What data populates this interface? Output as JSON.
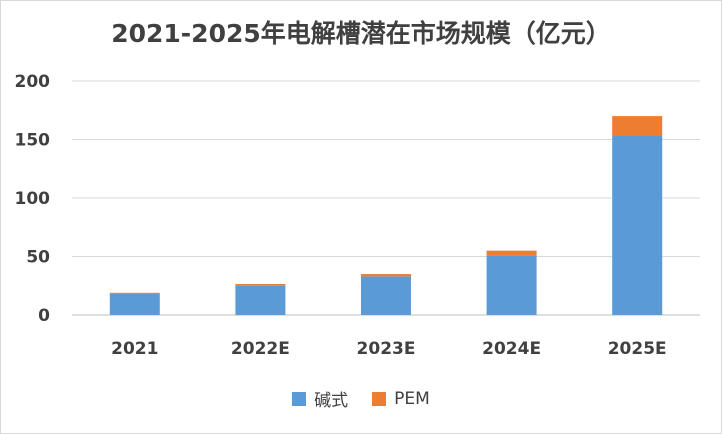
{
  "chart_data": {
    "type": "bar",
    "stacked": true,
    "title": "2021-2025年电解槽潜在市场规模（亿元）",
    "categories": [
      "2021",
      "2022E",
      "2023E",
      "2024E",
      "2025E"
    ],
    "series": [
      {
        "name": "碱式",
        "color": "#5b9bd5",
        "values": [
          18,
          25,
          33,
          51,
          153
        ]
      },
      {
        "name": "PEM",
        "color": "#ed7d31",
        "values": [
          1,
          1.5,
          2,
          4,
          17
        ]
      }
    ],
    "ylim": [
      0,
      200
    ],
    "yticks": [
      0,
      50,
      100,
      150,
      200
    ],
    "grid": true,
    "legend": "bottom"
  }
}
